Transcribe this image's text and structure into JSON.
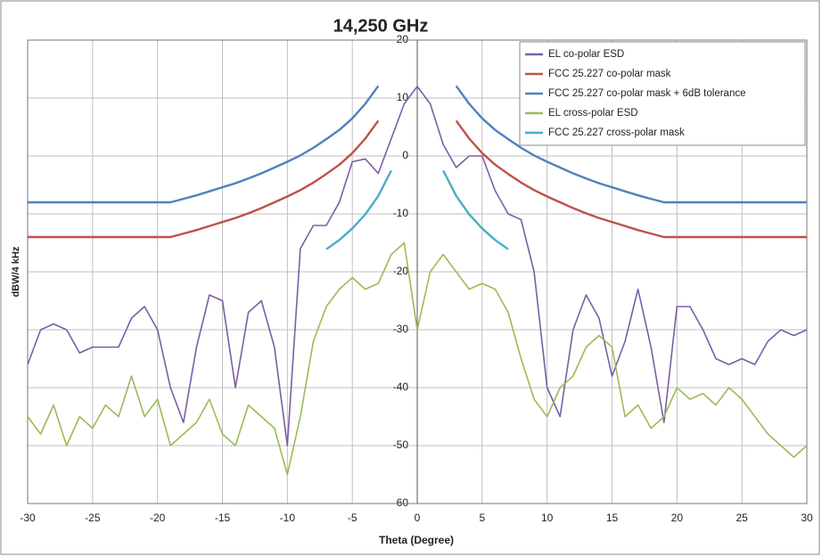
{
  "chart_data": {
    "type": "line",
    "title": "14,250 GHz",
    "xlabel": "Theta (Degree)",
    "ylabel": "dBW/4 kHz",
    "x": [
      -30,
      -29,
      -28,
      -27,
      -26,
      -25,
      -24,
      -23,
      -22,
      -21,
      -20,
      -19,
      -18,
      -17,
      -16,
      -15,
      -14,
      -13,
      -12,
      -11,
      -10,
      -9,
      -8,
      -7,
      -6,
      -5,
      -4,
      -3,
      -2,
      -1,
      0,
      1,
      2,
      3,
      4,
      5,
      6,
      7,
      8,
      9,
      10,
      11,
      12,
      13,
      14,
      15,
      16,
      17,
      18,
      19,
      20,
      21,
      22,
      23,
      24,
      25,
      26,
      27,
      28,
      29,
      30
    ],
    "series": [
      {
        "name": "EL co-polar ESD",
        "color": "#7b5ea7",
        "values": [
          -36,
          -30,
          -29,
          -30,
          -34,
          -33,
          -33,
          -33,
          -28,
          -26,
          -30,
          -40,
          -46,
          -33,
          -24,
          -25,
          -40,
          -27,
          -25,
          -33,
          -50,
          -16,
          -12,
          -12,
          -8,
          -1,
          -0.5,
          -3,
          3,
          9,
          12,
          9,
          2,
          -2,
          0,
          0,
          -6,
          -10,
          -11,
          -20,
          -40,
          -45,
          -30,
          -24,
          -28,
          -38,
          -32,
          -23,
          -33,
          -46,
          -26,
          -26,
          -30,
          -35,
          -36,
          -35,
          -36,
          -32,
          -30,
          -31,
          -30
        ]
      },
      {
        "name": "FCC 25.227 co-polar mask",
        "color": "#c0504d",
        "values": [
          -14,
          -14,
          -14,
          -14,
          -14,
          -14,
          -14,
          -14,
          -14,
          -14,
          -14,
          -14,
          -13.4,
          -12.8,
          -12.1,
          -11.4,
          -10.7,
          -9.9,
          -9,
          -8,
          -7,
          -5.9,
          -4.6,
          -3.1,
          -1.5,
          0.5,
          3,
          6.1,
          null,
          null,
          null,
          null,
          null,
          6.1,
          3,
          0.5,
          -1.5,
          -3.1,
          -4.6,
          -5.9,
          -7,
          -8,
          -9,
          -9.9,
          -10.7,
          -11.4,
          -12.1,
          -12.8,
          -13.4,
          -14,
          -14,
          -14,
          -14,
          -14,
          -14,
          -14,
          -14,
          -14,
          -14,
          -14,
          -14
        ]
      },
      {
        "name": "FCC 25.227 co-polar mask + 6dB tolerance",
        "color": "#4f81bd",
        "values": [
          -8,
          -8,
          -8,
          -8,
          -8,
          -8,
          -8,
          -8,
          -8,
          -8,
          -8,
          -8,
          -7.4,
          -6.8,
          -6.1,
          -5.4,
          -4.7,
          -3.9,
          -3,
          -2,
          -1,
          0.1,
          1.4,
          2.9,
          4.5,
          6.5,
          9,
          12.1,
          null,
          null,
          null,
          null,
          null,
          12.1,
          9,
          6.5,
          4.5,
          2.9,
          1.4,
          0.1,
          -1,
          -2,
          -3,
          -3.9,
          -4.7,
          -5.4,
          -6.1,
          -6.8,
          -7.4,
          -8,
          -8,
          -8,
          -8,
          -8,
          -8,
          -8,
          -8,
          -8,
          -8,
          -8,
          -8
        ]
      },
      {
        "name": "EL cross-polar ESD",
        "color": "#9bbb59",
        "values": [
          -45,
          -48,
          -43,
          -50,
          -45,
          -47,
          -43,
          -45,
          -38,
          -45,
          -42,
          -50,
          -48,
          -46,
          -42,
          -48,
          -50,
          -43,
          -45,
          -47,
          -55,
          -45,
          -32,
          -26,
          -23,
          -21,
          -23,
          -22,
          -17,
          -15,
          -30,
          -20,
          -17,
          -20,
          -23,
          -22,
          -23,
          -27,
          -35,
          -42,
          -45,
          -40,
          -38,
          -33,
          -31,
          -33,
          -45,
          -43,
          -47,
          -45,
          -40,
          -42,
          -41,
          -43,
          -40,
          -42,
          -45,
          -48,
          -50,
          -52,
          -50
        ]
      },
      {
        "name": "FCC 25.227 cross-polar mask",
        "color": "#4bacc6",
        "values": [
          null,
          null,
          null,
          null,
          null,
          null,
          null,
          null,
          null,
          null,
          null,
          null,
          null,
          null,
          null,
          null,
          null,
          null,
          null,
          null,
          null,
          null,
          null,
          -16.1,
          -14.5,
          -12.5,
          -10.1,
          -6.9,
          -2.5,
          null,
          null,
          null,
          -2.5,
          -6.9,
          -10.1,
          -12.5,
          -14.5,
          -16.1,
          null,
          null,
          null,
          null,
          null,
          null,
          null,
          null,
          null,
          null,
          null,
          null,
          null,
          null,
          null,
          null,
          null,
          null,
          null,
          null,
          null,
          null,
          null
        ]
      }
    ],
    "xlim": [
      -30,
      30
    ],
    "ylim": [
      -60,
      20
    ],
    "xticks": [
      -30,
      -25,
      -20,
      -15,
      -10,
      -5,
      0,
      5,
      10,
      15,
      20,
      25,
      30
    ],
    "yticks": [
      -60,
      -50,
      -40,
      -30,
      -20,
      -10,
      0,
      10,
      20
    ],
    "grid": true,
    "legend": "upper right"
  }
}
